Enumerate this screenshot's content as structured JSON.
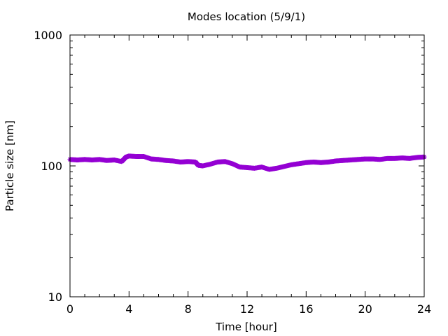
{
  "chart_data": {
    "type": "scatter",
    "title": "Modes location (5/9/1)",
    "xlabel": "Time [hour]",
    "ylabel": "Particle size [nm]",
    "xlim": [
      0,
      24
    ],
    "ylim": [
      10,
      1000
    ],
    "y_scale": "log",
    "x_ticks": [
      0,
      4,
      8,
      12,
      16,
      20,
      24
    ],
    "y_ticks": [
      10,
      100,
      1000
    ],
    "grid": false,
    "legend": "none",
    "series": [
      {
        "color": "#9400d3",
        "marker": "star",
        "x": [
          0,
          0.5,
          1,
          1.5,
          2,
          2.5,
          3,
          3.5,
          3.8,
          4,
          4.5,
          5,
          5.5,
          6,
          6.5,
          7,
          7.5,
          8,
          8.5,
          8.7,
          9,
          9.5,
          10,
          10.5,
          11,
          11.5,
          12,
          12.5,
          13,
          13.5,
          14,
          14.5,
          15,
          15.5,
          16,
          16.5,
          17,
          17.5,
          18,
          18.5,
          19,
          19.5,
          20,
          20.5,
          21,
          21.5,
          22,
          22.5,
          23,
          23.5,
          24
        ],
        "y": [
          112,
          111,
          112,
          111,
          112,
          110,
          111,
          108,
          117,
          119,
          118,
          118,
          113,
          112,
          110,
          109,
          107,
          108,
          107,
          101,
          100,
          103,
          107,
          108,
          104,
          98,
          97,
          96,
          98,
          94,
          96,
          99,
          102,
          104,
          106,
          107,
          106,
          107,
          109,
          110,
          111,
          112,
          113,
          113,
          112,
          114,
          114,
          115,
          114,
          116,
          117
        ]
      }
    ]
  }
}
